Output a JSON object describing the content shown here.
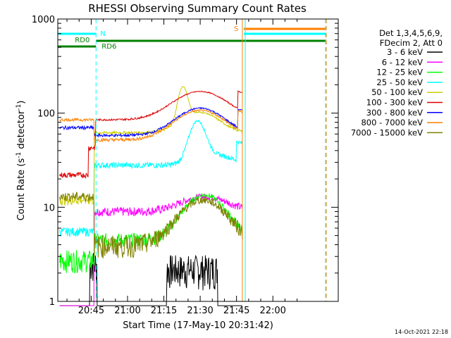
{
  "chart_data": {
    "type": "line",
    "title": "RHESSI Observing Summary Count Rates",
    "xlabel": "Start Time (17-May-10 20:31:42)",
    "ylabel_main": "Count Rate (s",
    "ylabel_sup1": "-1",
    "ylabel_mid": " detector",
    "ylabel_sup2": "-1",
    "ylabel_end": ")",
    "yscale": "log",
    "ylim": [
      1,
      1000
    ],
    "xlim_minutes": [
      20.52,
      22.45
    ],
    "x_ticks": [
      {
        "value": 20.75,
        "label": "20:45"
      },
      {
        "value": 21.0,
        "label": "21:00"
      },
      {
        "value": 21.25,
        "label": "21:15"
      },
      {
        "value": 21.5,
        "label": "21:30"
      },
      {
        "value": 21.75,
        "label": "21:45"
      },
      {
        "value": 22.0,
        "label": "22:00"
      }
    ],
    "y_ticks": [
      {
        "value": 1,
        "label": "1"
      },
      {
        "value": 10,
        "label": "10"
      },
      {
        "value": 100,
        "label": "100"
      },
      {
        "value": 1000,
        "label": "1000"
      }
    ],
    "legend_header": [
      "Det 1,3,4,5,6,9,",
      "FDecim 2, Att 0"
    ],
    "series": [
      {
        "name": "3 - 6 keV",
        "color": "#000000"
      },
      {
        "name": "6 - 12 keV",
        "color": "#ff00ff"
      },
      {
        "name": "12 - 25 keV",
        "color": "#00ff00"
      },
      {
        "name": "25 - 50 keV",
        "color": "#00ffff"
      },
      {
        "name": "50 - 100 keV",
        "color": "#cccc00"
      },
      {
        "name": "100 - 300 keV",
        "color": "#dd0000"
      },
      {
        "name": "300 - 800 keV",
        "color": "#0000ff"
      },
      {
        "name": "800 - 7000 keV",
        "color": "#ff8000"
      },
      {
        "name": "7000 - 15000 keV",
        "color": "#808000"
      }
    ],
    "flag_bars": [
      {
        "label": "N",
        "color": "#00ffff"
      },
      {
        "label": "RD0",
        "color": "#008000"
      },
      {
        "label": "RD6",
        "color": "#008000"
      },
      {
        "label": "S",
        "color": "#ff8000"
      }
    ],
    "footer_timestamp": "14-Oct-2021 22:18"
  }
}
